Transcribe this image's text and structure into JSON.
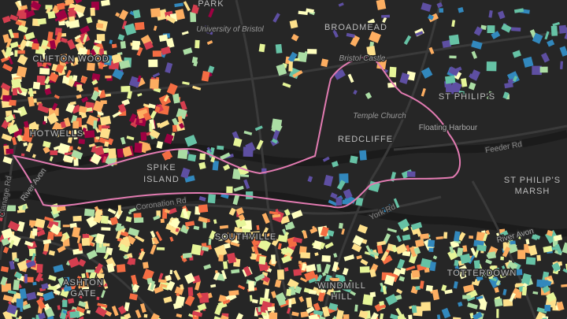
{
  "districts": {
    "park": "PARK",
    "broadmead": "BROADMEAD",
    "st_philips": "ST PHILIP'S",
    "redcliffe": "REDCLIFFE",
    "clifton_wood": "CLIFTON WOOD",
    "hotwells": "HOTWELLS",
    "spike_island": [
      "SPIKE",
      "ISLAND"
    ],
    "st_philips_marsh": [
      "ST PHILIP'S",
      "MARSH"
    ],
    "southville": "SOUTHVILLE",
    "ashton_gate": [
      "ASHTON",
      "GATE"
    ],
    "windmill_hill": [
      "WINDMILL",
      "HILL"
    ],
    "totterdown": "TOTTERDOWN"
  },
  "landmarks": {
    "university": "University of Bristol",
    "castle": "Bristol Castle",
    "temple_church": "Temple Church"
  },
  "water": {
    "floating_harbour": "Floating Harbour",
    "river_avon_east": "River Avon",
    "river_avon_west": "River Avon"
  },
  "streets": {
    "feeder_rd": "Feeder Rd",
    "coronation_rd": "Coronation Rd",
    "york_rd": "York Rd",
    "clanage_rd": "Clanage Rd"
  }
}
